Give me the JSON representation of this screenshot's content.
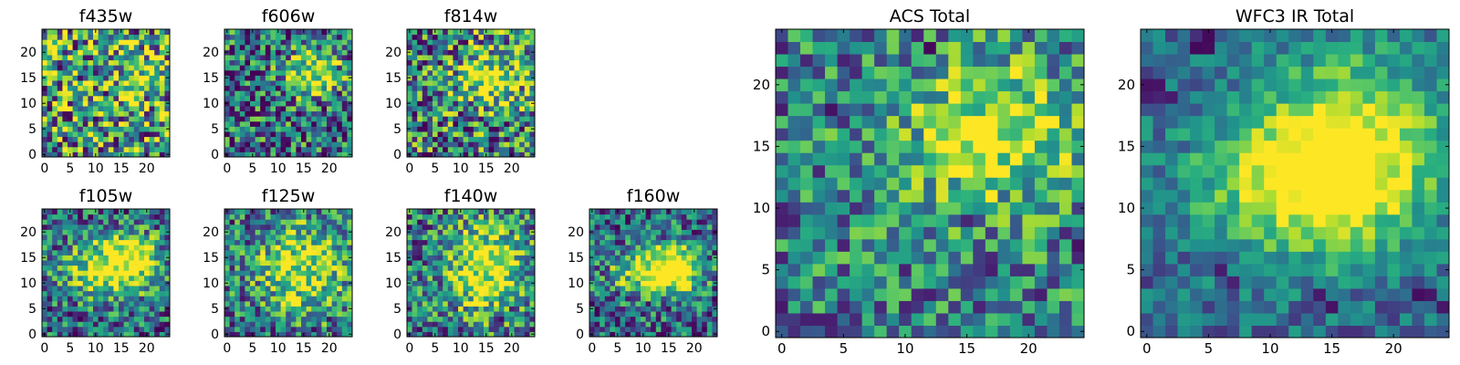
{
  "chart_data": [
    {
      "type": "heatmap",
      "title": "f435w",
      "x_ticks": [
        "0",
        "5",
        "10",
        "15",
        "20"
      ],
      "y_ticks": [
        "0",
        "5",
        "10",
        "15",
        "20"
      ],
      "xlim": [
        0,
        25
      ],
      "ylim": [
        0,
        25
      ],
      "colormap": "viridis",
      "grid": false,
      "pattern": {
        "seed": 11,
        "noise": 0.55,
        "bias": 0.55,
        "blobs": [
          {
            "cx": 17,
            "cy": 15,
            "sx": 5,
            "sy": 4,
            "a": 0.15
          }
        ],
        "dark_pixels": [
          [
            3,
            18
          ],
          [
            12,
            12
          ],
          [
            15,
            7
          ],
          [
            20,
            11
          ],
          [
            8,
            22
          ],
          [
            19,
            3
          ]
        ]
      }
    },
    {
      "type": "heatmap",
      "title": "f606w",
      "x_ticks": [
        "0",
        "5",
        "10",
        "15",
        "20"
      ],
      "y_ticks": [
        "0",
        "5",
        "10",
        "15",
        "20"
      ],
      "xlim": [
        0,
        25
      ],
      "ylim": [
        0,
        25
      ],
      "colormap": "viridis",
      "grid": false,
      "pattern": {
        "seed": 23,
        "noise": 0.45,
        "bias": 0.38,
        "blobs": [
          {
            "cx": 17,
            "cy": 16,
            "sx": 4,
            "sy": 3,
            "a": 0.45
          }
        ],
        "dark_pixels": [
          [
            2,
            14
          ],
          [
            7,
            10
          ],
          [
            11,
            4
          ],
          [
            22,
            17
          ],
          [
            5,
            1
          ],
          [
            16,
            2
          ]
        ]
      }
    },
    {
      "type": "heatmap",
      "title": "f814w",
      "x_ticks": [
        "0",
        "5",
        "10",
        "15",
        "20"
      ],
      "y_ticks": [
        "0",
        "5",
        "10",
        "15",
        "20"
      ],
      "xlim": [
        0,
        25
      ],
      "ylim": [
        0,
        25
      ],
      "colormap": "viridis",
      "grid": false,
      "pattern": {
        "seed": 37,
        "noise": 0.5,
        "bias": 0.45,
        "blobs": [
          {
            "cx": 16,
            "cy": 15,
            "sx": 5,
            "sy": 4,
            "a": 0.35
          }
        ],
        "dark_pixels": [
          [
            9,
            3
          ],
          [
            14,
            7
          ],
          [
            24,
            8
          ],
          [
            3,
            12
          ]
        ]
      }
    },
    {
      "type": "heatmap",
      "title": "f105w",
      "x_ticks": [
        "0",
        "5",
        "10",
        "15",
        "20"
      ],
      "y_ticks": [
        "0",
        "5",
        "10",
        "15",
        "20"
      ],
      "xlim": [
        0,
        25
      ],
      "ylim": [
        0,
        25
      ],
      "colormap": "viridis",
      "grid": false,
      "pattern": {
        "seed": 41,
        "noise": 0.38,
        "bias": 0.35,
        "blobs": [
          {
            "cx": 13,
            "cy": 13,
            "sx": 6,
            "sy": 4,
            "a": 0.5
          },
          {
            "cx": 18,
            "cy": 16,
            "sx": 3,
            "sy": 3,
            "a": 0.25
          }
        ],
        "dark_pixels": [
          [
            2,
            22
          ],
          [
            20,
            0
          ],
          [
            6,
            1
          ]
        ]
      }
    },
    {
      "type": "heatmap",
      "title": "f125w",
      "x_ticks": [
        "0",
        "5",
        "10",
        "15",
        "20"
      ],
      "y_ticks": [
        "0",
        "5",
        "10",
        "15",
        "20"
      ],
      "xlim": [
        0,
        25
      ],
      "ylim": [
        0,
        25
      ],
      "colormap": "viridis",
      "grid": false,
      "pattern": {
        "seed": 53,
        "noise": 0.4,
        "bias": 0.4,
        "blobs": [
          {
            "cx": 15,
            "cy": 13,
            "sx": 6,
            "sy": 6,
            "a": 0.4
          }
        ],
        "dark_pixels": [
          [
            4,
            0
          ],
          [
            5,
            0
          ],
          [
            20,
            3
          ],
          [
            21,
            2
          ],
          [
            17,
            1
          ]
        ]
      }
    },
    {
      "type": "heatmap",
      "title": "f140w",
      "x_ticks": [
        "0",
        "5",
        "10",
        "15",
        "20"
      ],
      "y_ticks": [
        "0",
        "5",
        "10",
        "15",
        "20"
      ],
      "xlim": [
        0,
        25
      ],
      "ylim": [
        0,
        25
      ],
      "colormap": "viridis",
      "grid": false,
      "pattern": {
        "seed": 67,
        "noise": 0.4,
        "bias": 0.42,
        "blobs": [
          {
            "cx": 15,
            "cy": 13,
            "sx": 5,
            "sy": 6,
            "a": 0.45
          }
        ],
        "dark_pixels": [
          [
            2,
            22
          ],
          [
            6,
            1
          ],
          [
            17,
            3
          ],
          [
            18,
            3
          ],
          [
            20,
            5
          ]
        ]
      }
    },
    {
      "type": "heatmap",
      "title": "f160w",
      "x_ticks": [
        "0",
        "5",
        "10",
        "15",
        "20"
      ],
      "y_ticks": [
        "0",
        "5",
        "10",
        "15",
        "20"
      ],
      "xlim": [
        0,
        25
      ],
      "ylim": [
        0,
        25
      ],
      "colormap": "viridis",
      "grid": false,
      "pattern": {
        "seed": 79,
        "noise": 0.38,
        "bias": 0.35,
        "blobs": [
          {
            "cx": 13,
            "cy": 12,
            "sx": 6,
            "sy": 3,
            "a": 0.5
          },
          {
            "cx": 16,
            "cy": 14,
            "sx": 3,
            "sy": 3,
            "a": 0.3
          }
        ],
        "dark_pixels": [
          [
            3,
            7
          ],
          [
            10,
            4
          ],
          [
            20,
            3
          ]
        ]
      }
    },
    {
      "type": "heatmap",
      "title": "ACS Total",
      "x_ticks": [
        "0",
        "5",
        "10",
        "15",
        "20"
      ],
      "y_ticks": [
        "0",
        "5",
        "10",
        "15",
        "20"
      ],
      "xlim": [
        0,
        25
      ],
      "ylim": [
        0,
        25
      ],
      "colormap": "viridis",
      "grid": false,
      "pattern": {
        "seed": 97,
        "noise": 0.35,
        "bias": 0.45,
        "blobs": [
          {
            "cx": 17,
            "cy": 16,
            "sx": 5,
            "sy": 4,
            "a": 0.35
          }
        ],
        "dark_pixels": [
          [
            1,
            9
          ],
          [
            5,
            7
          ],
          [
            15,
            9
          ],
          [
            17,
            5
          ],
          [
            21,
            3
          ],
          [
            24,
            7
          ],
          [
            4,
            18
          ],
          [
            12,
            23
          ],
          [
            0,
            2
          ]
        ]
      }
    },
    {
      "type": "heatmap",
      "title": "WFC3 IR Total",
      "x_ticks": [
        "0",
        "5",
        "10",
        "15",
        "20"
      ],
      "y_ticks": [
        "0",
        "5",
        "10",
        "15",
        "20"
      ],
      "xlim": [
        0,
        25
      ],
      "ylim": [
        0,
        25
      ],
      "colormap": "viridis",
      "grid": false,
      "pattern": {
        "seed": 113,
        "noise": 0.2,
        "bias": 0.35,
        "blobs": [
          {
            "cx": 13,
            "cy": 12,
            "sx": 6,
            "sy": 4,
            "a": 0.45
          },
          {
            "cx": 17,
            "cy": 16,
            "sx": 5,
            "sy": 5,
            "a": 0.35
          }
        ],
        "dark_pixels": [
          [
            0,
            19
          ],
          [
            1,
            19
          ],
          [
            2,
            19
          ],
          [
            0,
            20
          ],
          [
            1,
            20
          ],
          [
            4,
            23
          ],
          [
            5,
            23
          ],
          [
            5,
            24
          ],
          [
            6,
            5
          ],
          [
            7,
            4
          ],
          [
            14,
            3
          ],
          [
            22,
            3
          ],
          [
            23,
            3
          ],
          [
            24,
            2
          ],
          [
            15,
            2
          ]
        ]
      }
    }
  ]
}
